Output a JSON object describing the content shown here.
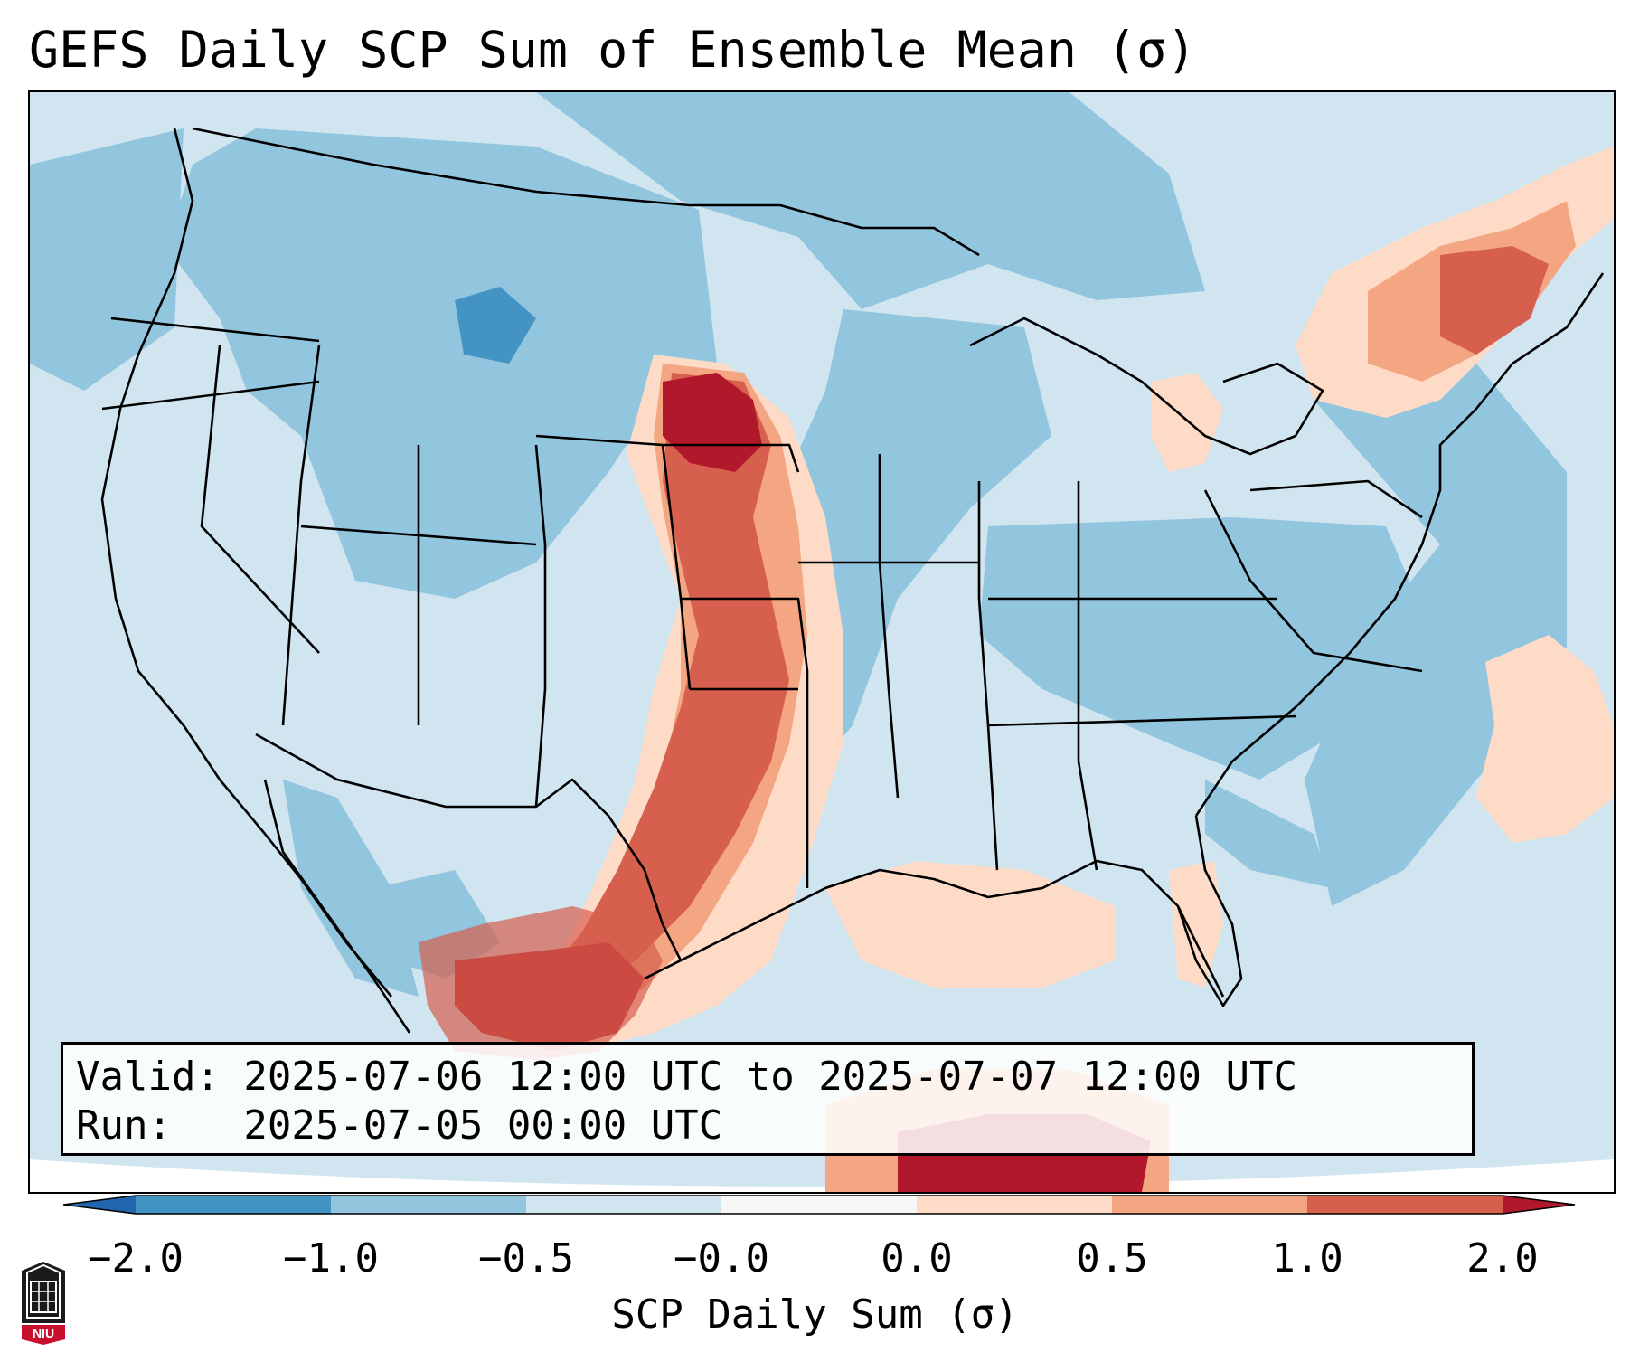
{
  "title": "GEFS Daily SCP Sum of Ensemble Mean (σ)",
  "info": {
    "valid_line": "Valid: 2025-07-06 12:00 UTC to 2025-07-07 12:00 UTC",
    "run_line": "Run:   2025-07-05 00:00 UTC"
  },
  "colorbar": {
    "label": "SCP Daily Sum (σ)",
    "ticks": [
      "−2.0",
      "−1.0",
      "−0.5",
      "−0.0",
      "0.0",
      "0.5",
      "1.0",
      "2.0"
    ],
    "bin_colors": [
      "#4393c3",
      "#92c5de",
      "#d1e5f0",
      "#f7f7f7",
      "#fddbc7",
      "#f4a582",
      "#d6604d"
    ],
    "under_color": "#2166ac",
    "over_color": "#b2182b",
    "extend": "both"
  },
  "map": {
    "region": "Contiguous United States",
    "background_level": -0.25,
    "features": [
      {
        "name": "Dakotas to Oklahoma high-SCP corridor",
        "max_sigma": 2.0
      },
      {
        "name": "West Texas and northern Mexico",
        "max_sigma": 2.0
      },
      {
        "name": "Northern Maine and Quebec",
        "max_sigma": 1.0
      },
      {
        "name": "Gulf of Mexico / Yucatan",
        "max_sigma": 2.0
      },
      {
        "name": "Montana–Wyoming low area",
        "min_sigma": -1.0
      }
    ]
  },
  "logo": {
    "text": "NIU",
    "name": "Northern Illinois University"
  }
}
